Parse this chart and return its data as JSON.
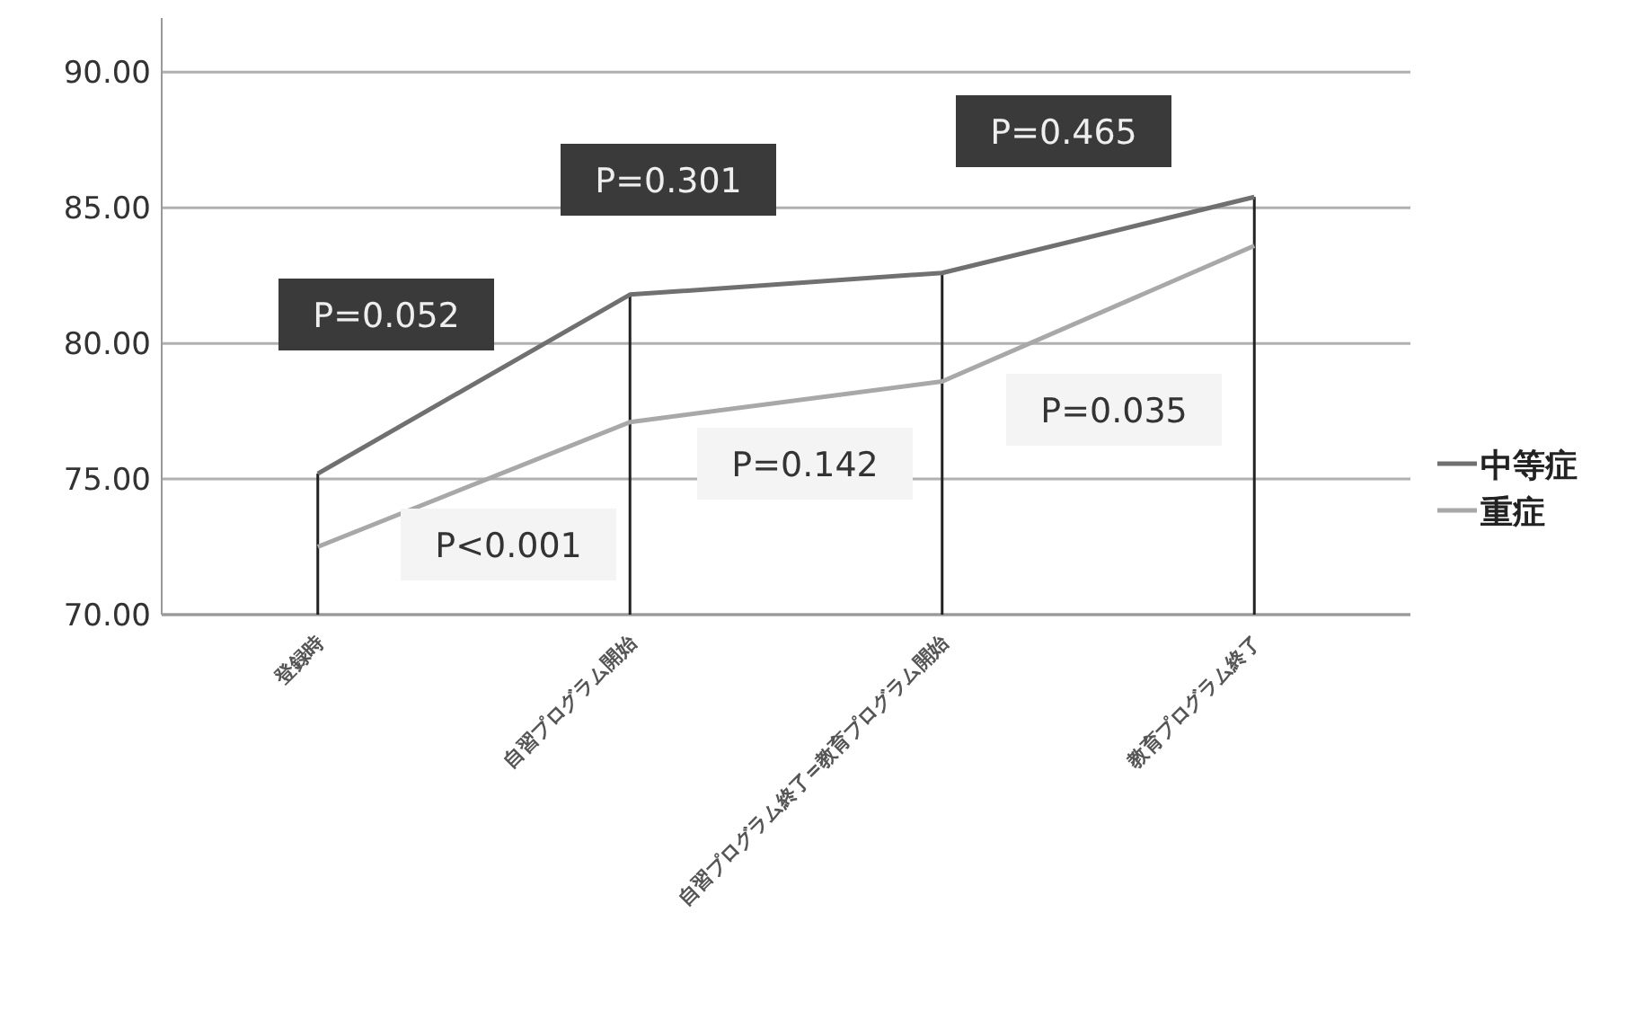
{
  "chart_data": {
    "type": "line",
    "categories": [
      "登録時",
      "自習プログラム開始",
      "自習プログラム終了=教育プログラム開始",
      "教育プログラム終了"
    ],
    "series": [
      {
        "name": "中等症",
        "color": "#707070",
        "values": [
          75.2,
          81.8,
          82.6,
          85.4
        ]
      },
      {
        "name": "重症",
        "color": "#a8a8a8",
        "values": [
          72.5,
          77.1,
          78.6,
          83.6
        ]
      },
      {
        "type": "bar",
        "color": "#222222",
        "values": [
          75.2,
          81.8,
          82.6,
          85.4
        ]
      }
    ],
    "ylim": [
      70,
      92
    ],
    "yticks": [
      {
        "value": 70,
        "label": "70.00"
      },
      {
        "value": 75,
        "label": "75.00"
      },
      {
        "value": 80,
        "label": "80.00"
      },
      {
        "value": 85,
        "label": "85.00"
      },
      {
        "value": 90,
        "label": "90.00"
      }
    ],
    "grid": "y",
    "legend": "right",
    "marker": "none",
    "line_style": "solid",
    "annotations": [
      "P=0.052",
      "P=0.301",
      "P=0.465",
      "P<0.001",
      "P=0.142",
      "P=0.035"
    ]
  }
}
